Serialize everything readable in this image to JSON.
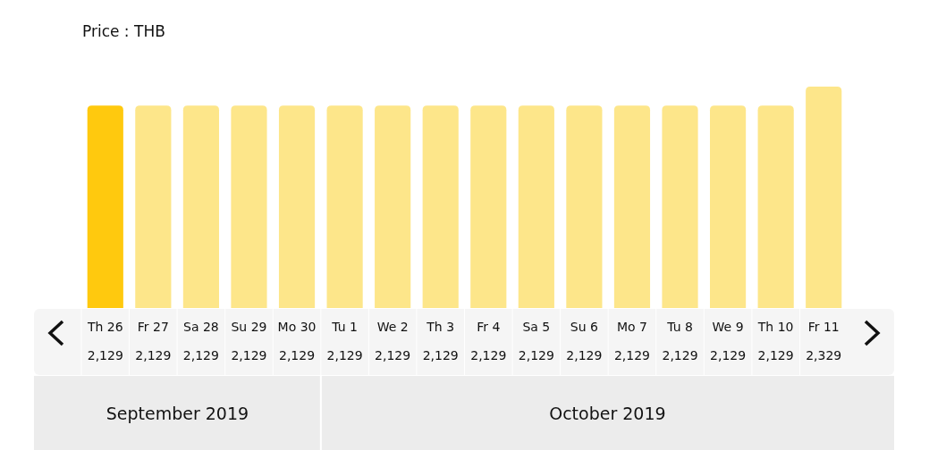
{
  "chart_data": {
    "type": "bar",
    "title": "Price : THB",
    "categories": [
      "Th 26",
      "Fr 27",
      "Sa 28",
      "Su 29",
      "Mo 30",
      "Tu 1",
      "We 2",
      "Th 3",
      "Fr 4",
      "Sa 5",
      "Su 6",
      "Mo 7",
      "Tu 8",
      "We 9",
      "Th 10",
      "Fr 11"
    ],
    "values": [
      2129,
      2129,
      2129,
      2129,
      2129,
      2129,
      2129,
      2129,
      2129,
      2129,
      2129,
      2129,
      2129,
      2129,
      2129,
      2329
    ],
    "value_labels": [
      "2,129",
      "2,129",
      "2,129",
      "2,129",
      "2,129",
      "2,129",
      "2,129",
      "2,129",
      "2,129",
      "2,129",
      "2,129",
      "2,129",
      "2,129",
      "2,129",
      "2,129",
      "2,329"
    ],
    "colors": [
      "#ffc90e",
      "#fde68a",
      "#fde68a",
      "#fde68a",
      "#fde68a",
      "#fde68a",
      "#fde68a",
      "#fde68a",
      "#fde68a",
      "#fde68a",
      "#fde68a",
      "#fde68a",
      "#fde68a",
      "#fde68a",
      "#fde68a",
      "#fde68a"
    ],
    "annotations": [
      "September 2019",
      "October 2019"
    ]
  }
}
